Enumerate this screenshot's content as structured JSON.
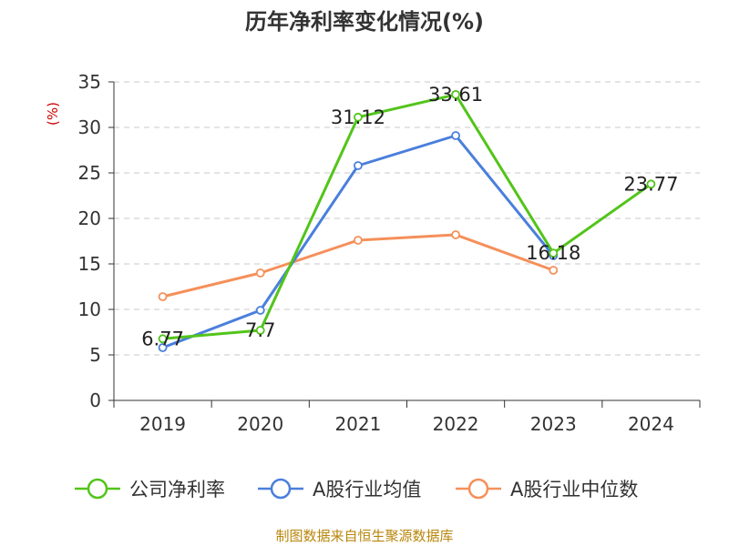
{
  "chart_data": {
    "type": "line",
    "title": "历年净利率变化情况(%)",
    "ylabel": "(%)",
    "ylim": [
      0,
      35
    ],
    "yticks": [
      0,
      5,
      10,
      15,
      20,
      25,
      30,
      35
    ],
    "categories": [
      "2019",
      "2020",
      "2021",
      "2022",
      "2023",
      "2024"
    ],
    "grid": true,
    "legend_position": "bottom",
    "series": [
      {
        "name": "公司净利率",
        "color": "#52c41a",
        "values": [
          6.77,
          7.7,
          31.12,
          33.61,
          16.18,
          23.77
        ],
        "labels": [
          "6.77",
          "7.7",
          "31.12",
          "33.61",
          "16.18",
          "23.77"
        ]
      },
      {
        "name": "A股行业均值",
        "color": "#4a7fdc",
        "values": [
          5.8,
          9.9,
          25.8,
          29.1,
          15.9,
          null
        ]
      },
      {
        "name": "A股行业中位数",
        "color": "#f5905a",
        "values": [
          11.4,
          14.0,
          17.6,
          18.2,
          14.3,
          null
        ]
      }
    ]
  },
  "source_note": "制图数据来自恒生聚源数据库"
}
